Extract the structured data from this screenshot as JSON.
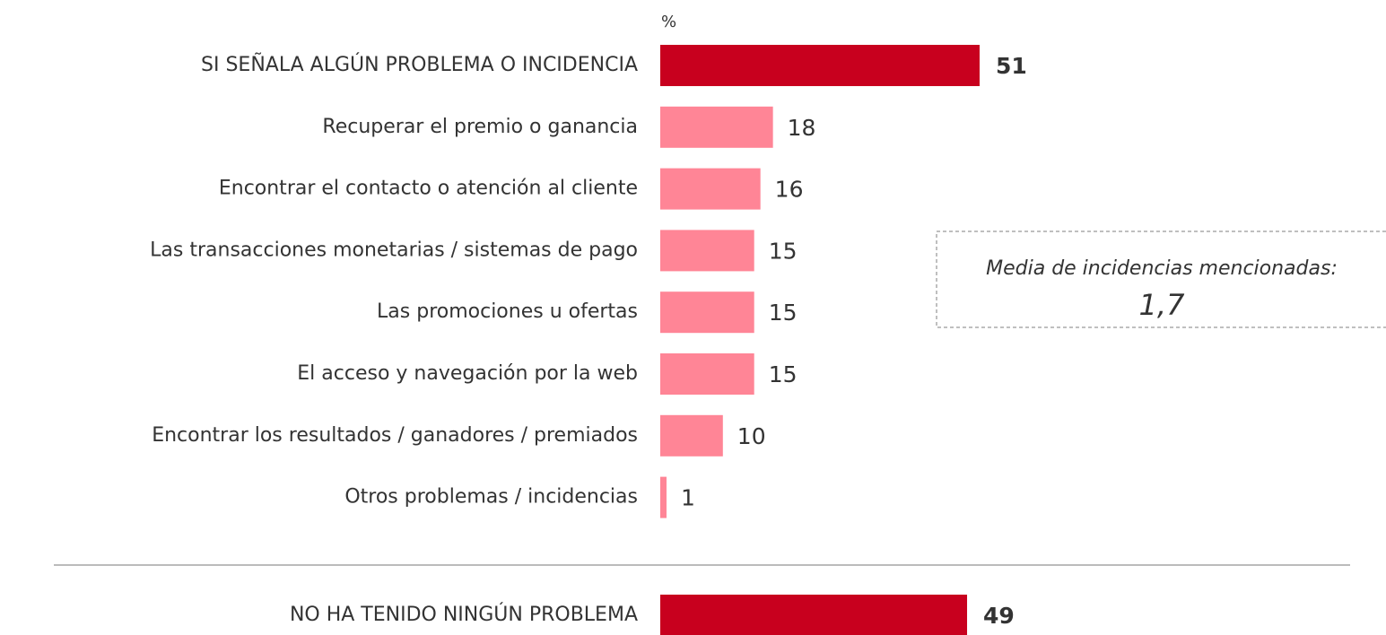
{
  "chart_data": {
    "type": "bar",
    "orientation": "horizontal",
    "axis_label": "%",
    "categories": [
      "SI SEÑALA ALGÚN PROBLEMA O INCIDENCIA",
      "Recuperar el premio o ganancia",
      "Encontrar el contacto o atención al cliente",
      "Las transacciones monetarias / sistemas de pago",
      "Las promociones u ofertas",
      "El acceso y navegación por la web",
      "Encontrar los resultados / ganadores / premiados",
      "Otros problemas / incidencias",
      "NO HA TENIDO NINGÚN PROBLEMA"
    ],
    "values": [
      51,
      18,
      16,
      15,
      15,
      15,
      10,
      1,
      49
    ],
    "colors": [
      "#c8001e",
      "#ff8596",
      "#ff8596",
      "#ff8596",
      "#ff8596",
      "#ff8596",
      "#ff8596",
      "#ff8596",
      "#c8001e"
    ],
    "annotation": {
      "text": "Media de incidencias mencionadas:",
      "value": "1,7"
    }
  }
}
